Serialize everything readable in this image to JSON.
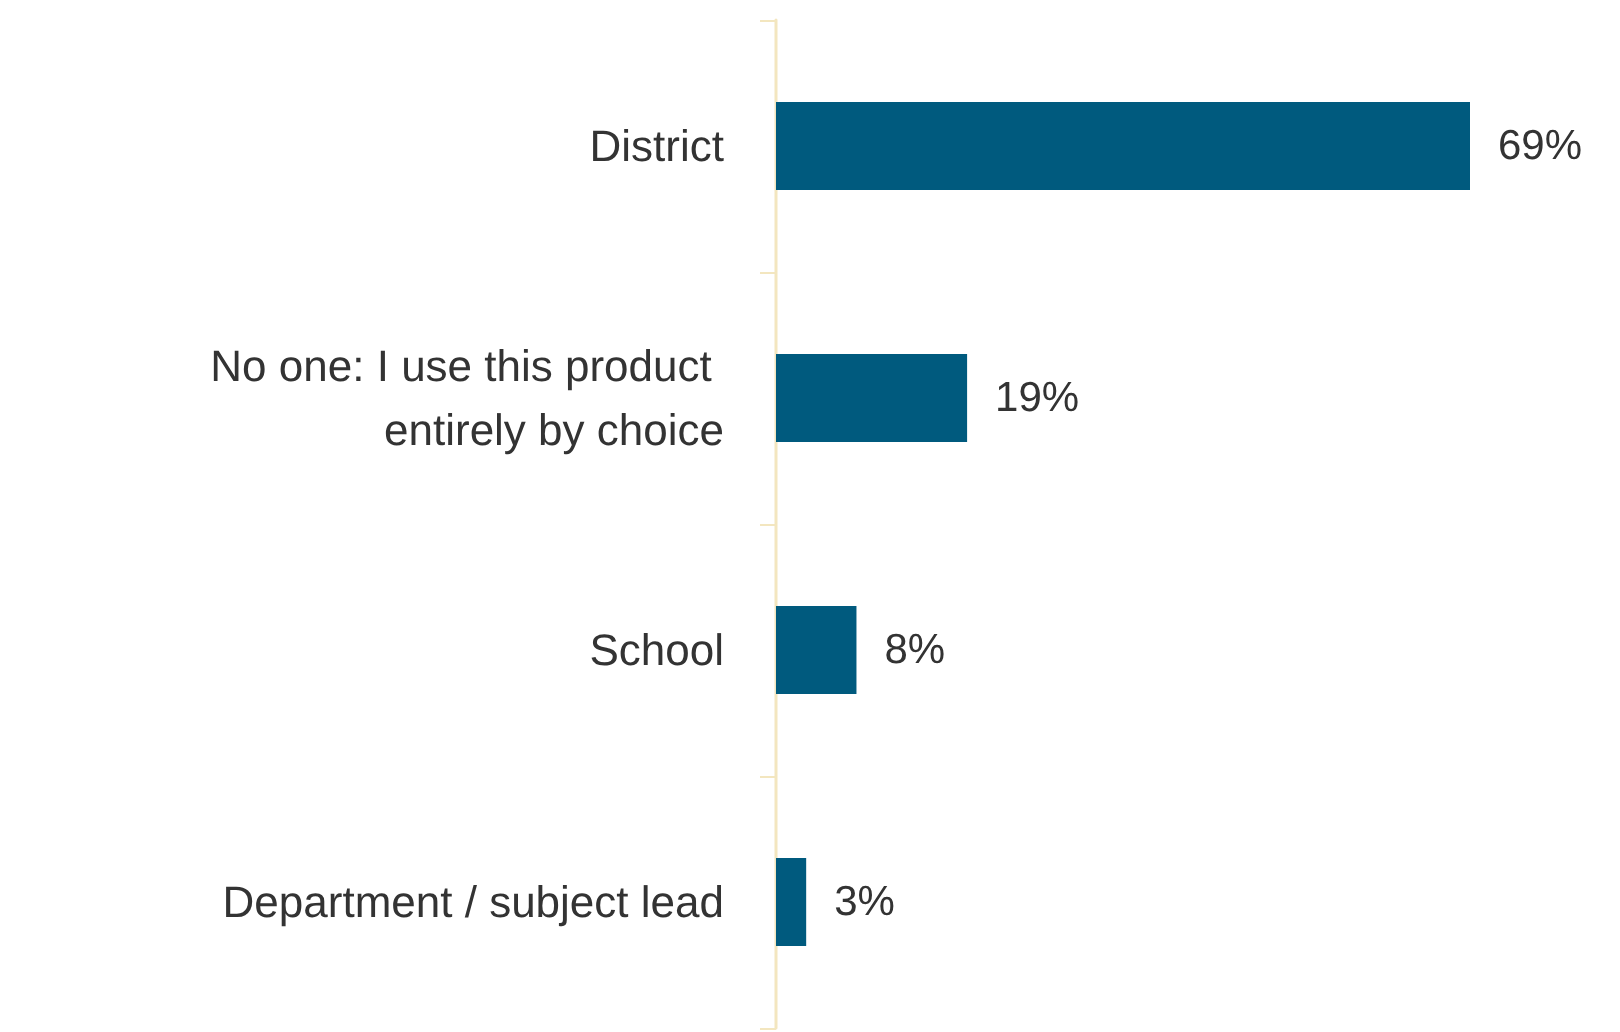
{
  "chart_data": {
    "type": "bar",
    "orientation": "horizontal",
    "categories": [
      "District",
      "No one: I use this product entirely by choice",
      "School",
      "Department / subject lead"
    ],
    "values": [
      69,
      19,
      8,
      3
    ],
    "value_labels": [
      "69%",
      "19%",
      "8%",
      "3%"
    ],
    "color": "#005a7e"
  }
}
